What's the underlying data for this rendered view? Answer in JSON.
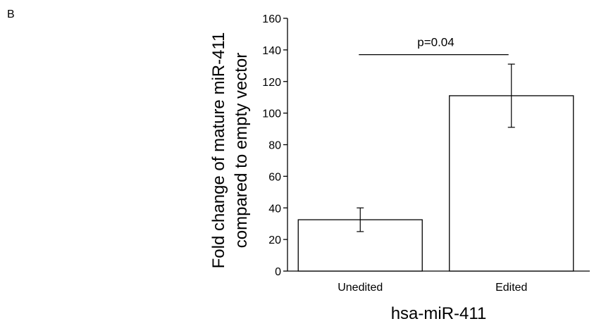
{
  "panel_label": "B",
  "chart_data": {
    "type": "bar",
    "categories": [
      "Unedited",
      "Edited"
    ],
    "values": [
      32.5,
      111
    ],
    "error": [
      {
        "low": 25,
        "high": 40
      },
      {
        "low": 91,
        "high": 131
      }
    ],
    "ylabel_lines": [
      "Fold change of mature miR-411",
      "compared to empty vector"
    ],
    "xlabel": "hsa-miR-411",
    "ylim": [
      0,
      160
    ],
    "yticks": [
      0,
      20,
      40,
      60,
      80,
      100,
      120,
      140,
      160
    ],
    "grid": false,
    "annotation": {
      "text": "p=0.04",
      "from": "Unedited",
      "to": "Edited",
      "y": 137
    }
  }
}
